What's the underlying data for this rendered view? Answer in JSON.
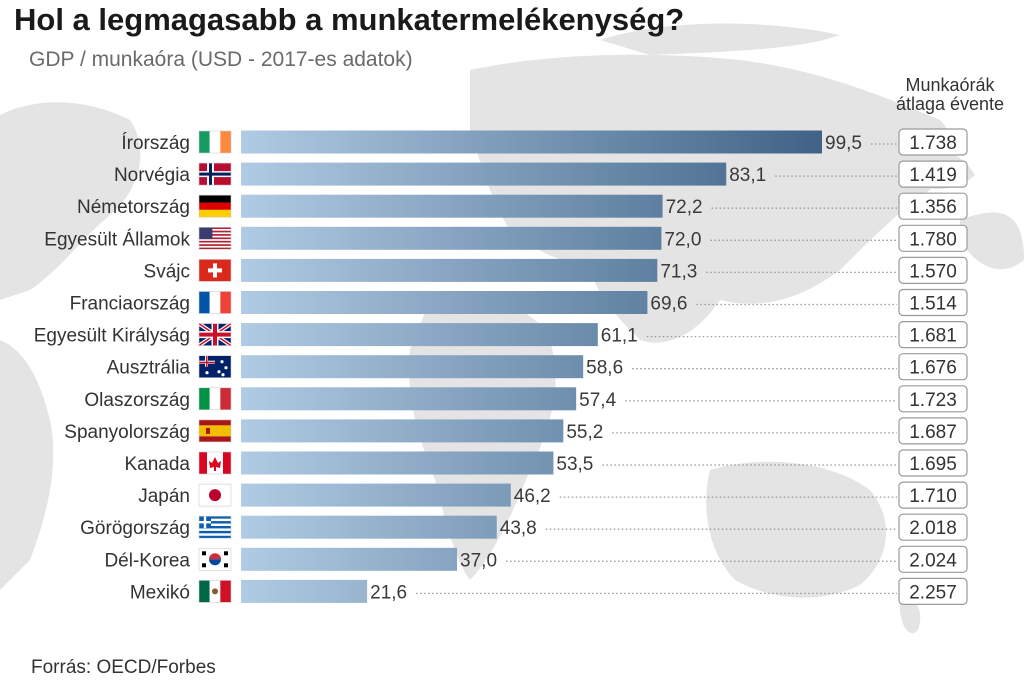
{
  "title": "Hol a legmagasabb a munkatermelékenység?",
  "subtitle": "GDP / munkaóra (USD - 2017-es adatok)",
  "hours_header": [
    "Munkaórák",
    "átlaga évente"
  ],
  "source": "Forrás: OECD/Forbes",
  "colors": {
    "bar_start": "#b0cbe3",
    "bar_end": "#3f6286",
    "value_text": "#3a3a3a",
    "box_border": "#9a9a9a",
    "map_land": "#e4e4e4"
  },
  "chart_data": {
    "type": "bar",
    "orientation": "horizontal",
    "title": "Hol a legmagasabb a munkatermelékenység?",
    "subtitle": "GDP / munkaóra (USD - 2017-es adatok)",
    "xlabel": "",
    "ylabel": "",
    "xlim": [
      0,
      99.5
    ],
    "grid": false,
    "legend": "none",
    "categories": [
      "Írország",
      "Norvégia",
      "Németország",
      "Egyesült Államok",
      "Svájc",
      "Franciaország",
      "Egyesült Királyság",
      "Ausztrália",
      "Olaszország",
      "Spanyolország",
      "Kanada",
      "Japán",
      "Görögország",
      "Dél-Korea",
      "Mexikó"
    ],
    "flags": [
      "ireland-flag-icon",
      "norway-flag-icon",
      "germany-flag-icon",
      "usa-flag-icon",
      "switzerland-flag-icon",
      "france-flag-icon",
      "uk-flag-icon",
      "australia-flag-icon",
      "italy-flag-icon",
      "spain-flag-icon",
      "canada-flag-icon",
      "japan-flag-icon",
      "greece-flag-icon",
      "south-korea-flag-icon",
      "mexico-flag-icon"
    ],
    "values": [
      99.5,
      83.1,
      72.2,
      72.0,
      71.3,
      69.6,
      61.1,
      58.6,
      57.4,
      55.2,
      53.5,
      46.2,
      43.8,
      37.0,
      21.6
    ],
    "value_labels": [
      "99,5",
      "83,1",
      "72,2",
      "72,0",
      "71,3",
      "69,6",
      "61,1",
      "58,6",
      "57,4",
      "55,2",
      "53,5",
      "46,2",
      "43,8",
      "37,0",
      "21,6"
    ],
    "secondary_name": "Munkaórák átlaga évente",
    "secondary_values": [
      1738,
      1419,
      1356,
      1780,
      1570,
      1514,
      1681,
      1676,
      1723,
      1687,
      1695,
      1710,
      2018,
      2024,
      2257
    ],
    "secondary_labels": [
      "1.738",
      "1.419",
      "1.356",
      "1.780",
      "1.570",
      "1.514",
      "1.681",
      "1.676",
      "1.723",
      "1.687",
      "1.695",
      "1.710",
      "2.018",
      "2.024",
      "2.257"
    ]
  }
}
